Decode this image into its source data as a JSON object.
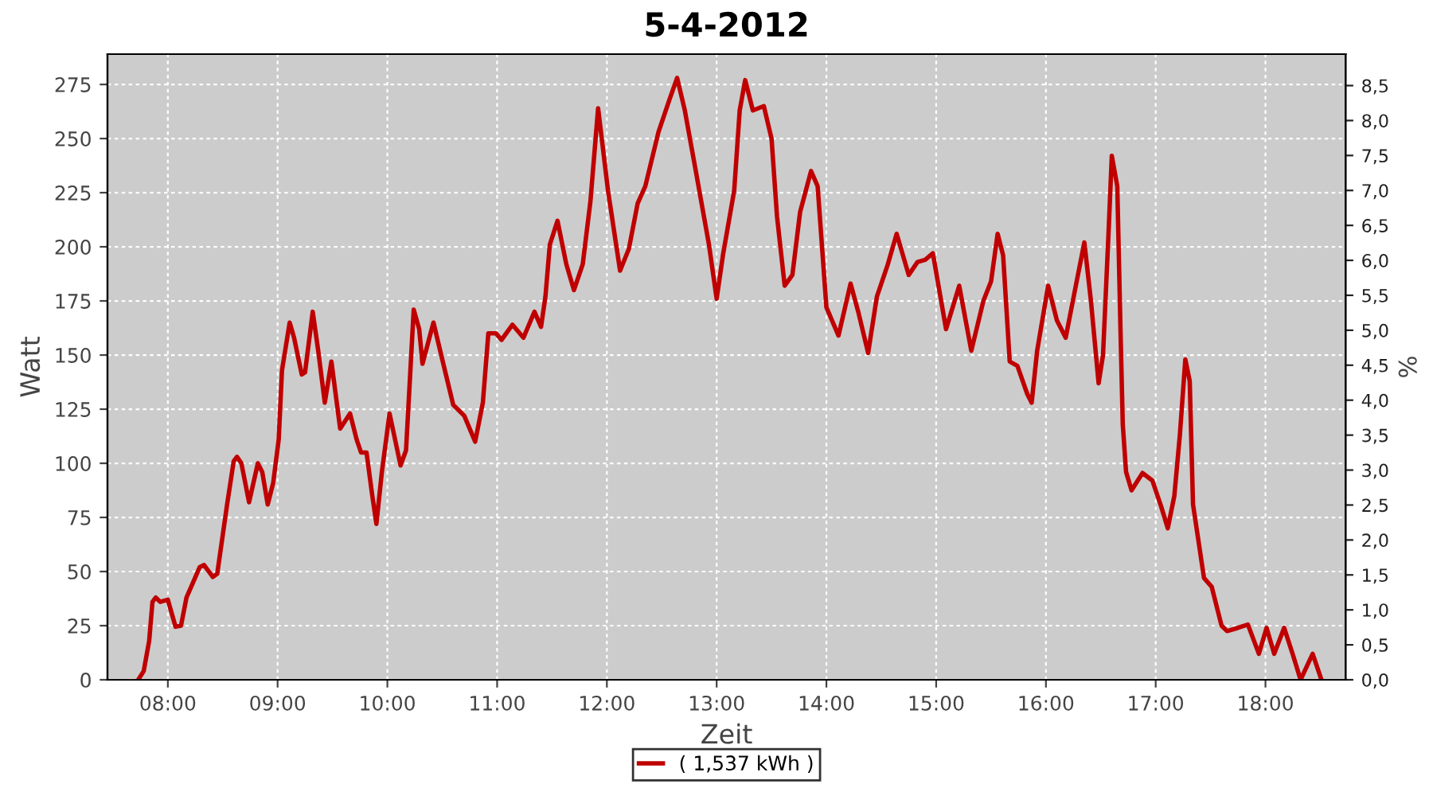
{
  "chart_data": {
    "type": "line",
    "title": "5-4-2012",
    "xlabel": "Zeit",
    "ylabel": "Watt",
    "y2label": "%",
    "xlim": [
      7.45,
      18.73
    ],
    "ylim": [
      0,
      289
    ],
    "y2lim": [
      0,
      8.95
    ],
    "xticks": [
      {
        "value": 8,
        "label": "08:00"
      },
      {
        "value": 9,
        "label": "09:00"
      },
      {
        "value": 10,
        "label": "10:00"
      },
      {
        "value": 11,
        "label": "11:00"
      },
      {
        "value": 12,
        "label": "12:00"
      },
      {
        "value": 13,
        "label": "13:00"
      },
      {
        "value": 14,
        "label": "14:00"
      },
      {
        "value": 15,
        "label": "15:00"
      },
      {
        "value": 16,
        "label": "16:00"
      },
      {
        "value": 17,
        "label": "17:00"
      },
      {
        "value": 18,
        "label": "18:00"
      }
    ],
    "yticks": [
      0,
      25,
      50,
      75,
      100,
      125,
      150,
      175,
      200,
      225,
      250,
      275
    ],
    "y2ticks": [
      {
        "value": 0,
        "label": "0,0"
      },
      {
        "value": 0.5,
        "label": "0,5"
      },
      {
        "value": 1,
        "label": "1,0"
      },
      {
        "value": 1.5,
        "label": "1,5"
      },
      {
        "value": 2,
        "label": "2,0"
      },
      {
        "value": 2.5,
        "label": "2,5"
      },
      {
        "value": 3,
        "label": "3,0"
      },
      {
        "value": 3.5,
        "label": "3,5"
      },
      {
        "value": 4,
        "label": "4,0"
      },
      {
        "value": 4.5,
        "label": "4,5"
      },
      {
        "value": 5,
        "label": "5,0"
      },
      {
        "value": 5.5,
        "label": "5,5"
      },
      {
        "value": 6,
        "label": "6,0"
      },
      {
        "value": 6.5,
        "label": "6,5"
      },
      {
        "value": 7,
        "label": "7,0"
      },
      {
        "value": 7.5,
        "label": "7,5"
      },
      {
        "value": 8,
        "label": "8,0"
      },
      {
        "value": 8.5,
        "label": "8,5"
      }
    ],
    "grid": true,
    "legend": "bottom",
    "marker": "none",
    "line_style": "solid",
    "series": [
      {
        "name": "( 1,537 kWh )",
        "color": "#c00000",
        "x": [
          7.73,
          7.78,
          7.83,
          7.86,
          7.89,
          7.93,
          8.0,
          8.07,
          8.12,
          8.17,
          8.29,
          8.33,
          8.41,
          8.45,
          8.54,
          8.6,
          8.63,
          8.67,
          8.74,
          8.82,
          8.86,
          8.91,
          8.96,
          9.01,
          9.04,
          9.11,
          9.15,
          9.22,
          9.25,
          9.32,
          9.37,
          9.43,
          9.49,
          9.57,
          9.66,
          9.72,
          9.76,
          9.81,
          9.86,
          9.9,
          9.95,
          10.02,
          10.12,
          10.17,
          10.24,
          10.29,
          10.32,
          10.42,
          10.5,
          10.6,
          10.7,
          10.8,
          10.87,
          10.92,
          10.99,
          11.04,
          11.14,
          11.24,
          11.34,
          11.4,
          11.44,
          11.48,
          11.55,
          11.63,
          11.7,
          11.78,
          11.85,
          11.92,
          12.01,
          12.12,
          12.2,
          12.28,
          12.35,
          12.47,
          12.57,
          12.64,
          12.71,
          12.81,
          12.93,
          13.0,
          13.06,
          13.16,
          13.21,
          13.26,
          13.33,
          13.43,
          13.5,
          13.55,
          13.62,
          13.69,
          13.76,
          13.86,
          13.92,
          14.0,
          14.11,
          14.22,
          14.29,
          14.38,
          14.46,
          14.56,
          14.64,
          14.75,
          14.83,
          14.9,
          14.97,
          15.09,
          15.21,
          15.32,
          15.43,
          15.5,
          15.56,
          15.61,
          15.67,
          15.74,
          15.83,
          15.87,
          15.92,
          16.02,
          16.1,
          16.18,
          16.28,
          16.35,
          16.41,
          16.48,
          16.52,
          16.57,
          16.6,
          16.65,
          16.68,
          16.7,
          16.73,
          16.78,
          16.88,
          16.97,
          17.05,
          17.11,
          17.17,
          17.22,
          17.27,
          17.31,
          17.34,
          17.39,
          17.44,
          17.51,
          17.6,
          17.65,
          17.75,
          17.84,
          17.94,
          18.01,
          18.08,
          18.17,
          18.25,
          18.32,
          18.43,
          18.51
        ],
        "values": [
          0,
          4,
          18,
          36,
          38,
          36,
          37,
          24.5,
          25,
          38,
          52,
          53,
          47.5,
          49,
          81,
          101,
          103,
          100,
          82,
          100,
          96,
          81,
          91,
          111,
          143,
          165,
          158,
          141,
          142,
          170,
          152,
          128,
          147,
          116,
          123,
          111,
          105,
          105,
          86,
          72,
          96,
          123,
          99,
          106,
          171,
          162,
          146,
          165,
          148,
          127,
          122,
          110,
          128,
          160,
          160,
          157,
          164,
          158,
          170,
          163,
          177,
          201,
          212,
          192,
          180,
          192,
          221,
          264,
          226,
          189,
          199,
          220,
          228,
          253,
          268,
          278,
          263,
          235,
          201,
          176,
          197,
          226,
          263,
          277,
          263,
          265,
          250,
          214,
          182,
          187,
          216,
          235,
          228,
          172,
          159,
          183,
          170,
          151,
          177,
          192,
          206,
          187,
          193,
          194,
          197,
          162,
          182,
          152,
          175,
          184,
          206,
          196,
          147,
          145,
          132,
          128,
          152,
          182,
          166,
          158,
          184,
          202,
          175,
          137,
          150,
          206,
          242,
          228,
          160,
          118,
          96,
          87.5,
          95.5,
          92,
          80,
          70,
          85,
          113,
          148,
          138,
          81,
          64,
          47,
          43,
          25,
          22.5,
          24,
          25.5,
          12,
          24,
          12,
          24,
          11.5,
          0,
          12,
          0
        ]
      }
    ]
  }
}
